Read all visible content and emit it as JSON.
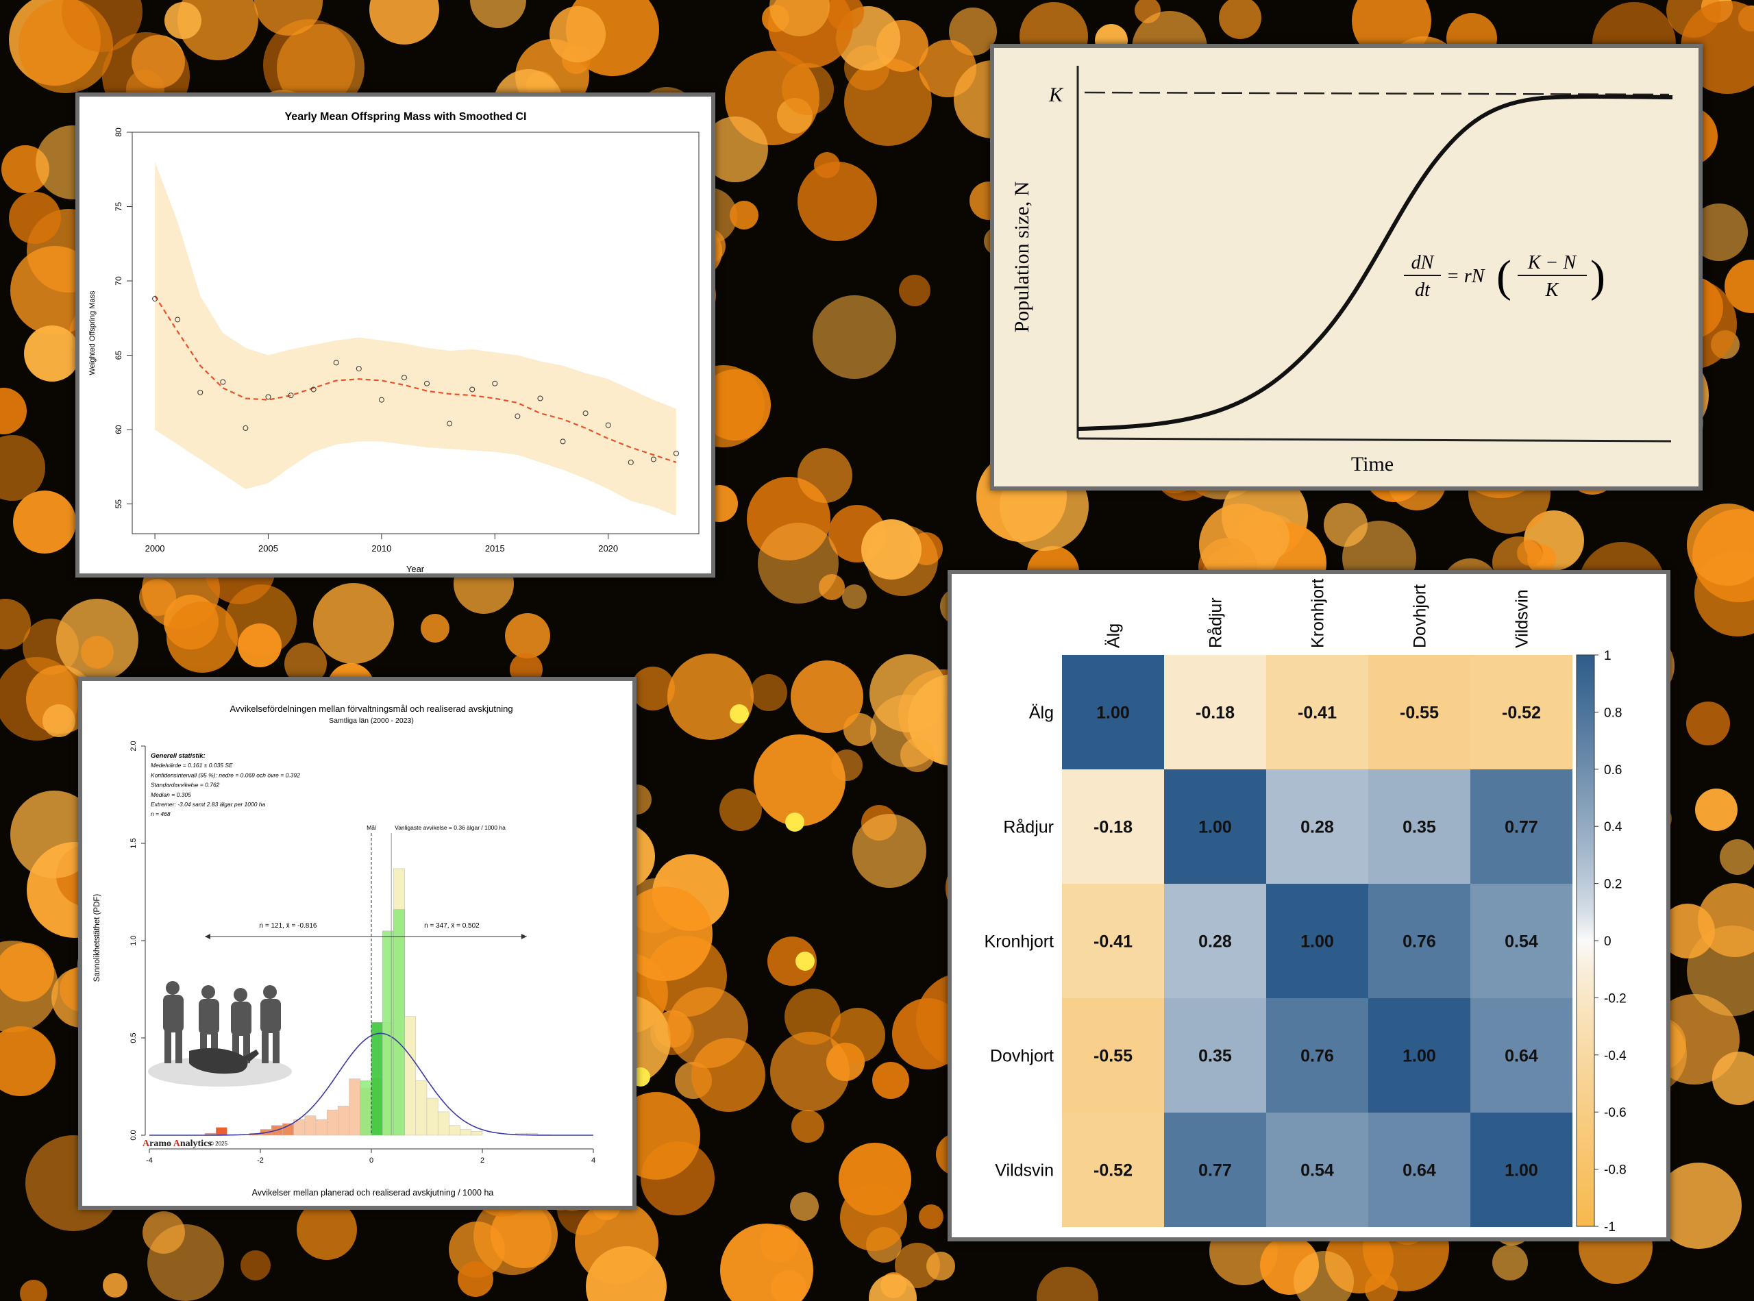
{
  "colors": {
    "accent_orange": "#f79a1e",
    "heat_blue": "#2e5c8a",
    "heat_orange": "#f7b94d",
    "logistic_bg": "#f4ecd6"
  },
  "chart_data": [
    {
      "type": "scatter",
      "title": "Yearly Mean Offspring Mass with Smoothed CI",
      "xlabel": "Year",
      "ylabel": "Weighted Offspring Mass",
      "xlim": [
        1999,
        2024
      ],
      "ylim": [
        53,
        80
      ],
      "xticks": [
        "2000",
        "2005",
        "2010",
        "2015",
        "2020"
      ],
      "yticks": [
        "55",
        "60",
        "65",
        "70",
        "75",
        "80"
      ],
      "points": [
        {
          "x": 2000,
          "y": 68.8
        },
        {
          "x": 2001,
          "y": 67.4
        },
        {
          "x": 2002,
          "y": 62.5
        },
        {
          "x": 2003,
          "y": 63.2
        },
        {
          "x": 2004,
          "y": 60.1
        },
        {
          "x": 2005,
          "y": 62.2
        },
        {
          "x": 2006,
          "y": 62.3
        },
        {
          "x": 2007,
          "y": 62.7
        },
        {
          "x": 2008,
          "y": 64.5
        },
        {
          "x": 2009,
          "y": 64.1
        },
        {
          "x": 2010,
          "y": 62.0
        },
        {
          "x": 2011,
          "y": 63.5
        },
        {
          "x": 2012,
          "y": 63.1
        },
        {
          "x": 2013,
          "y": 60.4
        },
        {
          "x": 2014,
          "y": 62.7
        },
        {
          "x": 2015,
          "y": 63.1
        },
        {
          "x": 2016,
          "y": 60.9
        },
        {
          "x": 2017,
          "y": 62.1
        },
        {
          "x": 2018,
          "y": 59.2
        },
        {
          "x": 2019,
          "y": 61.1
        },
        {
          "x": 2020,
          "y": 60.3
        },
        {
          "x": 2021,
          "y": 57.8
        },
        {
          "x": 2022,
          "y": 58.0
        },
        {
          "x": 2023,
          "y": 58.4
        }
      ],
      "smooth": [
        {
          "x": 2000,
          "y": 69.0
        },
        {
          "x": 2001,
          "y": 66.6
        },
        {
          "x": 2002,
          "y": 64.3
        },
        {
          "x": 2003,
          "y": 62.8
        },
        {
          "x": 2004,
          "y": 62.1
        },
        {
          "x": 2005,
          "y": 62.0
        },
        {
          "x": 2006,
          "y": 62.3
        },
        {
          "x": 2007,
          "y": 62.8
        },
        {
          "x": 2008,
          "y": 63.3
        },
        {
          "x": 2009,
          "y": 63.4
        },
        {
          "x": 2010,
          "y": 63.3
        },
        {
          "x": 2011,
          "y": 63.0
        },
        {
          "x": 2012,
          "y": 62.6
        },
        {
          "x": 2013,
          "y": 62.4
        },
        {
          "x": 2014,
          "y": 62.3
        },
        {
          "x": 2015,
          "y": 62.1
        },
        {
          "x": 2016,
          "y": 61.8
        },
        {
          "x": 2017,
          "y": 61.1
        },
        {
          "x": 2018,
          "y": 60.7
        },
        {
          "x": 2019,
          "y": 60.1
        },
        {
          "x": 2020,
          "y": 59.4
        },
        {
          "x": 2021,
          "y": 58.8
        },
        {
          "x": 2022,
          "y": 58.3
        },
        {
          "x": 2023,
          "y": 57.8
        }
      ],
      "ci_upper": [
        78,
        74,
        69,
        66.5,
        65.5,
        65,
        65.4,
        65.7,
        66,
        66.2,
        66,
        65.8,
        65.5,
        65.3,
        65.4,
        65.2,
        65,
        64.6,
        64.3,
        63.8,
        63.4,
        62.7,
        62,
        61.4
      ],
      "ci_lower": [
        60,
        59,
        58,
        57,
        56,
        56.4,
        57.5,
        58.5,
        59,
        59.2,
        59.2,
        59,
        58.8,
        58.7,
        58.6,
        58.5,
        58.3,
        57.8,
        57.3,
        56.7,
        56,
        55.2,
        54.8,
        54.2
      ]
    },
    {
      "type": "line",
      "xlabel": "Time",
      "ylabel": "Population size, N",
      "capacity_label": "K",
      "equation": {
        "lhs_num": "dN",
        "lhs_den": "dt",
        "mid": "= rN",
        "rhs_num": "K − N",
        "rhs_den": "K"
      }
    },
    {
      "type": "bar",
      "title": "Avvikelsefördelningen mellan förvaltningsmål och realiserad avskjutning",
      "subtitle": "Samtliga län (2000 - 2023)",
      "xlabel": "Avvikelser mellan planerad och realiserad avskjutning / 1000 ha",
      "ylabel": "Sannolikhetstäthet (PDF)",
      "xlim": [
        -4,
        4
      ],
      "ylim": [
        0,
        2.0
      ],
      "xticks": [
        "-4",
        "-2",
        "0",
        "2",
        "4"
      ],
      "yticks": [
        "0.0",
        "0.5",
        "1.0",
        "1.5",
        "2.0"
      ],
      "stats": [
        "Generell statistik:",
        "Medelvärde = 0.161 ± 0.035 SE",
        "Konfidensintervall (95 %): nedre = 0.069 och övre = 0.392",
        "Standardavvikelse = 0.762",
        "Median = 0.305",
        "Extremer: -3.04 samt 2.83 älgar per 1000 ha",
        "n = 468"
      ],
      "goal_label": "Mål",
      "mode_label": "Vanligaste avvikelse = 0.36 älgar / 1000 ha",
      "left_group": "n = 121,  x̄ = -0.816",
      "right_group": "n = 347,  x̄ = 0.502",
      "logo": {
        "a1": "A",
        "r1": "ramo ",
        "a2": "A",
        "r2": "nalytics",
        "year": "© 2025"
      },
      "bin_width": 0.2,
      "bins": [
        {
          "x": -3.0,
          "v": 0.01
        },
        {
          "x": -2.8,
          "v": 0.04
        },
        {
          "x": -2.2,
          "v": 0.01
        },
        {
          "x": -2.0,
          "v": 0.03
        },
        {
          "x": -1.8,
          "v": 0.05
        },
        {
          "x": -1.6,
          "v": 0.06
        },
        {
          "x": -1.4,
          "v": 0.08
        },
        {
          "x": -1.2,
          "v": 0.1
        },
        {
          "x": -1.0,
          "v": 0.08
        },
        {
          "x": -0.8,
          "v": 0.13
        },
        {
          "x": -0.6,
          "v": 0.15
        },
        {
          "x": -0.4,
          "v": 0.29
        },
        {
          "x": -0.2,
          "v": 0.24
        },
        {
          "x": 0.0,
          "v": 0.29
        },
        {
          "x": 0.2,
          "v": 0.58
        },
        {
          "x": 0.4,
          "v": 1.37
        },
        {
          "x": 0.6,
          "v": 0.61
        },
        {
          "x": 0.8,
          "v": 0.28
        },
        {
          "x": 1.0,
          "v": 0.19
        },
        {
          "x": 1.2,
          "v": 0.12
        },
        {
          "x": 1.4,
          "v": 0.05
        },
        {
          "x": 1.6,
          "v": 0.03
        },
        {
          "x": 1.8,
          "v": 0.02
        },
        {
          "x": 2.6,
          "v": 0.01
        },
        {
          "x": 2.8,
          "v": 0.01
        }
      ],
      "green_bins": [
        {
          "x": -0.2,
          "v": 0.28
        },
        {
          "x": 0.0,
          "v": 0.58
        },
        {
          "x": 0.2,
          "v": 1.05
        },
        {
          "x": 0.4,
          "v": 1.16
        }
      ],
      "normal": {
        "mean": 0.161,
        "sd": 0.762
      }
    },
    {
      "type": "heatmap",
      "labels": [
        "Älg",
        "Rådjur",
        "Kronhjort",
        "Dovhjort",
        "Vildsvin"
      ],
      "matrix": [
        [
          1.0,
          -0.18,
          -0.41,
          -0.55,
          -0.52
        ],
        [
          -0.18,
          1.0,
          0.28,
          0.35,
          0.77
        ],
        [
          -0.41,
          0.28,
          1.0,
          0.76,
          0.54
        ],
        [
          -0.55,
          0.35,
          0.76,
          1.0,
          0.64
        ],
        [
          -0.52,
          0.77,
          0.54,
          0.64,
          1.0
        ]
      ],
      "cell_text": [
        [
          "1.00",
          "-0.18",
          "-0.41",
          "-0.55",
          "-0.52"
        ],
        [
          "-0.18",
          "1.00",
          "0.28",
          "0.35",
          "0.77"
        ],
        [
          "-0.41",
          "0.28",
          "1.00",
          "0.76",
          "0.54"
        ],
        [
          "-0.55",
          "0.35",
          "0.76",
          "1.00",
          "0.64"
        ],
        [
          "-0.52",
          "0.77",
          "0.54",
          "0.64",
          "1.00"
        ]
      ],
      "colorbar_ticks": [
        "1",
        "0.8",
        "0.6",
        "0.4",
        "0.2",
        "0",
        "-0.2",
        "-0.4",
        "-0.6",
        "-0.8",
        "-1"
      ],
      "colorbar_values": [
        1,
        0.8,
        0.6,
        0.4,
        0.2,
        0,
        -0.2,
        -0.4,
        -0.6,
        -0.8,
        -1
      ]
    }
  ]
}
